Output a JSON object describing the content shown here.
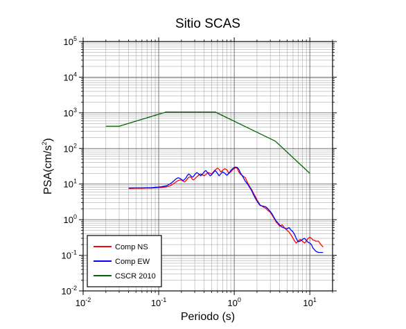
{
  "chart_data": {
    "type": "line",
    "title": "Sitio SCAS",
    "xlabel": "Periodo (s)",
    "ylabel_main": "PSA(cm/s",
    "ylabel_sup": "2",
    "ylabel_tail": ")",
    "x_scale": "log",
    "y_scale": "log",
    "xlim": [
      0.01,
      20
    ],
    "ylim": [
      0.01,
      100000
    ],
    "grid": true,
    "legend_position": "bottom-left",
    "x_ticks": [
      {
        "base": "10",
        "exp": "-2",
        "value": 0.01
      },
      {
        "base": "10",
        "exp": "-1",
        "value": 0.1
      },
      {
        "base": "10",
        "exp": "0",
        "value": 1
      },
      {
        "base": "10",
        "exp": "1",
        "value": 10
      }
    ],
    "y_ticks": [
      {
        "base": "10",
        "exp": "-2",
        "value": 0.01
      },
      {
        "base": "10",
        "exp": "-1",
        "value": 0.1
      },
      {
        "base": "10",
        "exp": "0",
        "value": 1
      },
      {
        "base": "10",
        "exp": "1",
        "value": 10
      },
      {
        "base": "10",
        "exp": "2",
        "value": 100
      },
      {
        "base": "10",
        "exp": "3",
        "value": 1000
      },
      {
        "base": "10",
        "exp": "4",
        "value": 10000
      },
      {
        "base": "10",
        "exp": "5",
        "value": 100000
      }
    ],
    "series": [
      {
        "name": "Comp NS",
        "color": "#ff0000",
        "points": [
          [
            0.04,
            7.5
          ],
          [
            0.05,
            7.6
          ],
          [
            0.06,
            7.6
          ],
          [
            0.07,
            7.7
          ],
          [
            0.08,
            7.7
          ],
          [
            0.09,
            7.8
          ],
          [
            0.1,
            7.9
          ],
          [
            0.11,
            8.0
          ],
          [
            0.12,
            8.2
          ],
          [
            0.13,
            8.5
          ],
          [
            0.14,
            8.9
          ],
          [
            0.15,
            9.6
          ],
          [
            0.16,
            10.5
          ],
          [
            0.17,
            11.5
          ],
          [
            0.18,
            12.5
          ],
          [
            0.19,
            13.0
          ],
          [
            0.2,
            13.0
          ],
          [
            0.21,
            12.0
          ],
          [
            0.22,
            11.5
          ],
          [
            0.23,
            12.5
          ],
          [
            0.24,
            14.0
          ],
          [
            0.25,
            15.5
          ],
          [
            0.26,
            16.0
          ],
          [
            0.27,
            15.0
          ],
          [
            0.28,
            13.5
          ],
          [
            0.29,
            13.0
          ],
          [
            0.3,
            14.0
          ],
          [
            0.32,
            16.0
          ],
          [
            0.34,
            18.0
          ],
          [
            0.36,
            19.0
          ],
          [
            0.38,
            18.0
          ],
          [
            0.4,
            17.0
          ],
          [
            0.42,
            18.5
          ],
          [
            0.45,
            21.0
          ],
          [
            0.48,
            20.0
          ],
          [
            0.5,
            19.0
          ],
          [
            0.53,
            22.0
          ],
          [
            0.56,
            25.0
          ],
          [
            0.6,
            28.0
          ],
          [
            0.63,
            26.0
          ],
          [
            0.66,
            22.0
          ],
          [
            0.7,
            24.0
          ],
          [
            0.75,
            27.0
          ],
          [
            0.8,
            25.0
          ],
          [
            0.85,
            20.0
          ],
          [
            0.9,
            22.0
          ],
          [
            0.95,
            25.0
          ],
          [
            1.0,
            27.0
          ],
          [
            1.05,
            29.0
          ],
          [
            1.1,
            27.0
          ],
          [
            1.15,
            22.0
          ],
          [
            1.2,
            19.0
          ],
          [
            1.3,
            17.0
          ],
          [
            1.4,
            15.0
          ],
          [
            1.5,
            11.0
          ],
          [
            1.6,
            8.5
          ],
          [
            1.7,
            7.0
          ],
          [
            1.8,
            5.5
          ],
          [
            1.9,
            4.5
          ],
          [
            2.0,
            3.6
          ],
          [
            2.2,
            2.6
          ],
          [
            2.4,
            2.3
          ],
          [
            2.6,
            2.1
          ],
          [
            2.8,
            1.8
          ],
          [
            3.0,
            1.6
          ],
          [
            3.2,
            1.3
          ],
          [
            3.4,
            1.05
          ],
          [
            3.6,
            0.85
          ],
          [
            3.8,
            0.75
          ],
          [
            4.0,
            0.65
          ],
          [
            4.3,
            0.72
          ],
          [
            4.6,
            0.6
          ],
          [
            5.0,
            0.5
          ],
          [
            5.3,
            0.45
          ],
          [
            5.6,
            0.38
          ],
          [
            6.0,
            0.3
          ],
          [
            6.3,
            0.25
          ],
          [
            6.6,
            0.22
          ],
          [
            7.0,
            0.25
          ],
          [
            7.5,
            0.28
          ],
          [
            8.0,
            0.25
          ],
          [
            8.5,
            0.22
          ],
          [
            9.0,
            0.25
          ],
          [
            9.5,
            0.3
          ],
          [
            10.0,
            0.32
          ],
          [
            10.5,
            0.3
          ],
          [
            11.0,
            0.27
          ],
          [
            12.0,
            0.25
          ],
          [
            13.0,
            0.25
          ],
          [
            14.0,
            0.2
          ],
          [
            15.0,
            0.17
          ]
        ]
      },
      {
        "name": "Comp EW",
        "color": "#0000ff",
        "points": [
          [
            0.04,
            7.7
          ],
          [
            0.05,
            7.8
          ],
          [
            0.06,
            7.8
          ],
          [
            0.07,
            7.9
          ],
          [
            0.08,
            7.9
          ],
          [
            0.09,
            8.1
          ],
          [
            0.1,
            8.2
          ],
          [
            0.11,
            8.4
          ],
          [
            0.12,
            8.7
          ],
          [
            0.13,
            9.2
          ],
          [
            0.14,
            10.0
          ],
          [
            0.15,
            11.0
          ],
          [
            0.16,
            12.5
          ],
          [
            0.17,
            14.0
          ],
          [
            0.18,
            15.0
          ],
          [
            0.19,
            14.5
          ],
          [
            0.2,
            13.5
          ],
          [
            0.21,
            12.5
          ],
          [
            0.22,
            13.5
          ],
          [
            0.23,
            15.0
          ],
          [
            0.24,
            17.5
          ],
          [
            0.25,
            19.0
          ],
          [
            0.26,
            18.0
          ],
          [
            0.27,
            16.5
          ],
          [
            0.28,
            15.5
          ],
          [
            0.29,
            16.5
          ],
          [
            0.3,
            18.5
          ],
          [
            0.32,
            21.0
          ],
          [
            0.34,
            19.0
          ],
          [
            0.36,
            17.0
          ],
          [
            0.38,
            19.0
          ],
          [
            0.4,
            22.0
          ],
          [
            0.42,
            24.0
          ],
          [
            0.45,
            20.0
          ],
          [
            0.48,
            17.0
          ],
          [
            0.5,
            18.0
          ],
          [
            0.53,
            21.0
          ],
          [
            0.56,
            24.0
          ],
          [
            0.6,
            20.0
          ],
          [
            0.63,
            17.0
          ],
          [
            0.66,
            19.0
          ],
          [
            0.7,
            22.0
          ],
          [
            0.75,
            20.0
          ],
          [
            0.8,
            17.5
          ],
          [
            0.85,
            20.0
          ],
          [
            0.9,
            24.0
          ],
          [
            0.95,
            27.0
          ],
          [
            1.0,
            29.0
          ],
          [
            1.05,
            30.0
          ],
          [
            1.1,
            29.0
          ],
          [
            1.15,
            26.0
          ],
          [
            1.2,
            21.0
          ],
          [
            1.3,
            16.0
          ],
          [
            1.4,
            12.0
          ],
          [
            1.5,
            10.0
          ],
          [
            1.6,
            8.0
          ],
          [
            1.7,
            6.5
          ],
          [
            1.8,
            5.0
          ],
          [
            1.9,
            4.0
          ],
          [
            2.0,
            3.3
          ],
          [
            2.2,
            2.5
          ],
          [
            2.4,
            2.4
          ],
          [
            2.6,
            2.3
          ],
          [
            2.8,
            2.0
          ],
          [
            3.0,
            1.7
          ],
          [
            3.2,
            1.4
          ],
          [
            3.4,
            1.1
          ],
          [
            3.6,
            0.9
          ],
          [
            3.8,
            0.8
          ],
          [
            4.0,
            0.7
          ],
          [
            4.3,
            0.62
          ],
          [
            4.6,
            0.58
          ],
          [
            5.0,
            0.55
          ],
          [
            5.3,
            0.6
          ],
          [
            5.6,
            0.52
          ],
          [
            6.0,
            0.45
          ],
          [
            6.3,
            0.38
          ],
          [
            6.6,
            0.3
          ],
          [
            7.0,
            0.24
          ],
          [
            7.5,
            0.25
          ],
          [
            8.0,
            0.28
          ],
          [
            8.5,
            0.3
          ],
          [
            9.0,
            0.26
          ],
          [
            9.5,
            0.23
          ],
          [
            10.0,
            0.22
          ],
          [
            10.5,
            0.2
          ],
          [
            11.0,
            0.16
          ],
          [
            12.0,
            0.13
          ],
          [
            13.0,
            0.12
          ],
          [
            14.0,
            0.12
          ],
          [
            15.0,
            0.12
          ]
        ]
      },
      {
        "name": "CSCR 2010",
        "color": "#006400",
        "points": [
          [
            0.02,
            420
          ],
          [
            0.03,
            420
          ],
          [
            0.125,
            1050
          ],
          [
            0.56,
            1050
          ],
          [
            3.5,
            160
          ],
          [
            10.0,
            20
          ]
        ]
      }
    ]
  }
}
